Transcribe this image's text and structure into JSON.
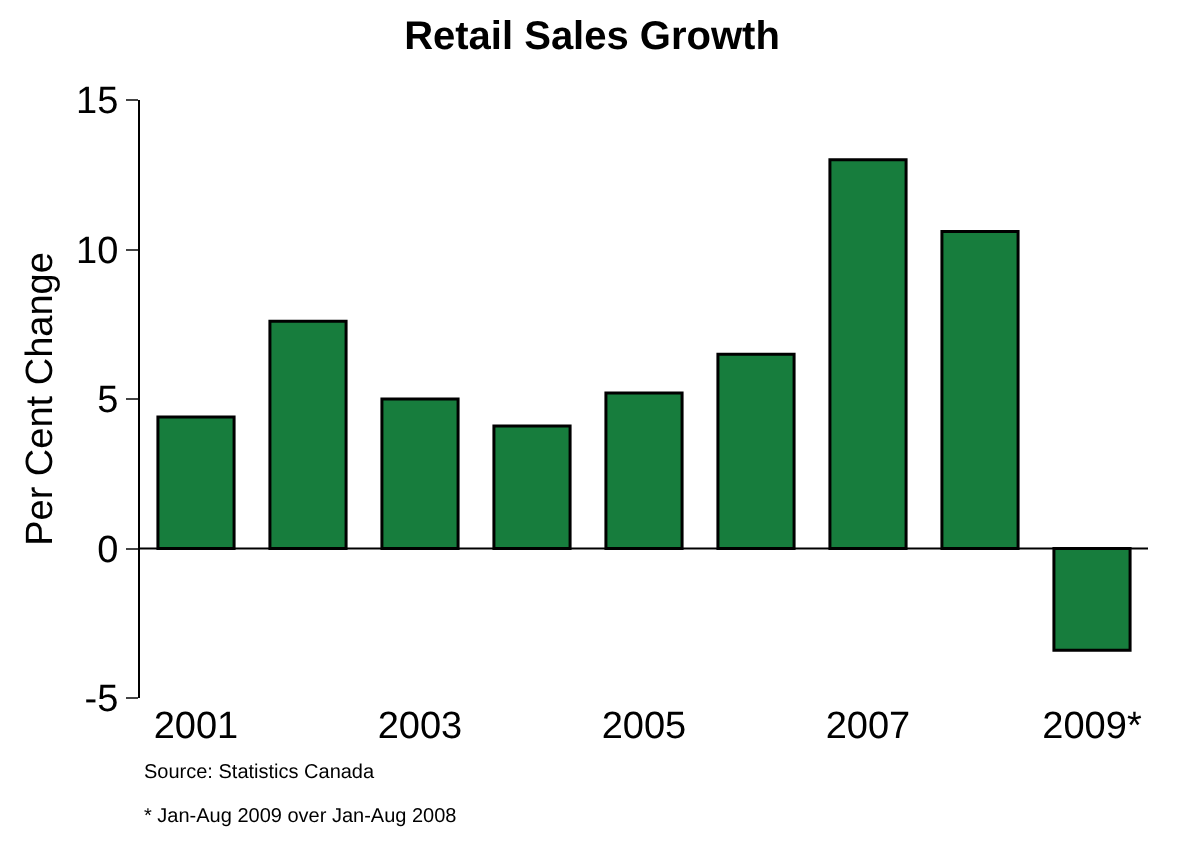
{
  "chart_data": {
    "type": "bar",
    "title": "Retail Sales Growth",
    "ylabel": "Per Cent Change",
    "categories": [
      "2001",
      null,
      "2003",
      null,
      "2005",
      null,
      "2007",
      null,
      "2009*"
    ],
    "values": [
      4.4,
      7.6,
      5.0,
      4.1,
      5.2,
      6.5,
      13.0,
      10.6,
      -3.4
    ],
    "color": "#177d3d",
    "ylim": [
      -5,
      15
    ],
    "yticks": [
      -5,
      0,
      5,
      10,
      15
    ],
    "annotations": [
      "Source: Statistics Canada",
      "* Jan-Aug 2009 over Jan-Aug 2008"
    ]
  }
}
